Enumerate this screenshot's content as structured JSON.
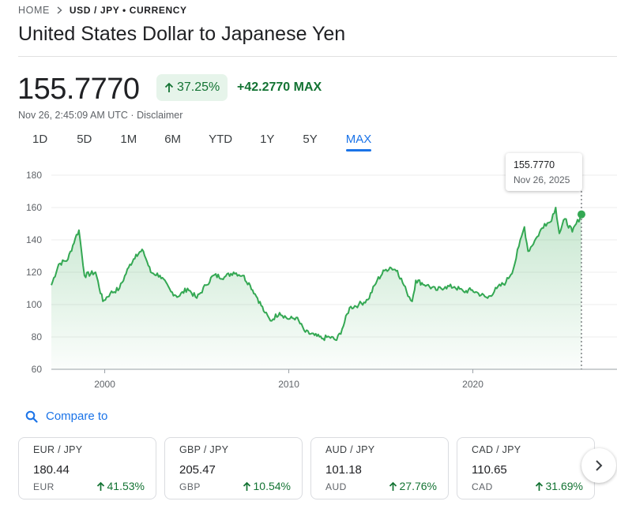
{
  "breadcrumb": {
    "home": "HOME",
    "crumb": "USD / JPY • CURRENCY"
  },
  "title": "United States Dollar to Japanese Yen",
  "quote": {
    "price": "155.7770",
    "percent_change": "37.25%",
    "absolute_change": "+42.2770 MAX",
    "timestamp": "Nov 26, 2:45:09 AM UTC · ",
    "disclaimer": "Disclaimer"
  },
  "ranges": [
    {
      "label": "1D",
      "active": false
    },
    {
      "label": "5D",
      "active": false
    },
    {
      "label": "1M",
      "active": false
    },
    {
      "label": "6M",
      "active": false
    },
    {
      "label": "YTD",
      "active": false
    },
    {
      "label": "1Y",
      "active": false
    },
    {
      "label": "5Y",
      "active": false
    },
    {
      "label": "MAX",
      "active": true
    }
  ],
  "tooltip": {
    "value": "155.7770",
    "date": "Nov 26, 2025"
  },
  "colors": {
    "up": "#137333",
    "line": "#34a853",
    "accent": "#1a73e8"
  },
  "compare_label": "Compare to",
  "compare_cards": [
    {
      "pair": "EUR / JPY",
      "value": "180.44",
      "code": "EUR",
      "change": "41.53%"
    },
    {
      "pair": "GBP / JPY",
      "value": "205.47",
      "code": "GBP",
      "change": "10.54%"
    },
    {
      "pair": "AUD / JPY",
      "value": "101.18",
      "code": "AUD",
      "change": "27.76%"
    },
    {
      "pair": "CAD / JPY",
      "value": "110.65",
      "code": "CAD",
      "change": "31.69%"
    }
  ],
  "icons": {
    "breadcrumb_sep": "chevron-right-icon",
    "up": "arrow-up-icon",
    "compare": "search-icon",
    "next": "chevron-right-icon"
  },
  "chart_data": {
    "type": "area",
    "x_ticks": [
      2000,
      2010,
      2020
    ],
    "y_ticks": [
      60,
      80,
      100,
      120,
      140,
      160,
      180
    ],
    "ylim": [
      60,
      180
    ],
    "xlim": [
      1997.1,
      2025.9
    ],
    "grid": true,
    "x": [
      1997.1,
      1997.5,
      1998.0,
      1998.4,
      1998.6,
      1998.9,
      1999.5,
      1999.9,
      2000.3,
      2000.8,
      2001.3,
      2001.7,
      2002.1,
      2002.5,
      2003.0,
      2003.6,
      2004.0,
      2004.5,
      2005.0,
      2005.5,
      2005.9,
      2006.5,
      2007.0,
      2007.5,
      2007.9,
      2008.3,
      2008.7,
      2009.0,
      2009.5,
      2010.0,
      2010.4,
      2010.9,
      2011.4,
      2011.8,
      2012.2,
      2012.6,
      2012.9,
      2013.3,
      2013.8,
      2014.3,
      2014.8,
      2015.2,
      2015.5,
      2015.9,
      2016.4,
      2016.7,
      2016.9,
      2017.5,
      2018.0,
      2018.5,
      2019.0,
      2019.5,
      2019.9,
      2020.3,
      2020.8,
      2021.3,
      2021.8,
      2022.2,
      2022.5,
      2022.8,
      2023.0,
      2023.5,
      2023.9,
      2024.2,
      2024.5,
      2024.7,
      2025.0,
      2025.4,
      2025.9
    ],
    "y": [
      112,
      125,
      128,
      141,
      146,
      118,
      120,
      102,
      107,
      110,
      123,
      131,
      133,
      120,
      118,
      108,
      105,
      110,
      104,
      112,
      118,
      117,
      120,
      118,
      112,
      104,
      95,
      90,
      95,
      91,
      92,
      83,
      81,
      79,
      80,
      78,
      85,
      98,
      100,
      103,
      115,
      121,
      123,
      121,
      108,
      102,
      115,
      112,
      109,
      111,
      111,
      108,
      109,
      107,
      104,
      110,
      114,
      122,
      136,
      148,
      133,
      142,
      150,
      151,
      160,
      144,
      153,
      145,
      155.777
    ]
  }
}
